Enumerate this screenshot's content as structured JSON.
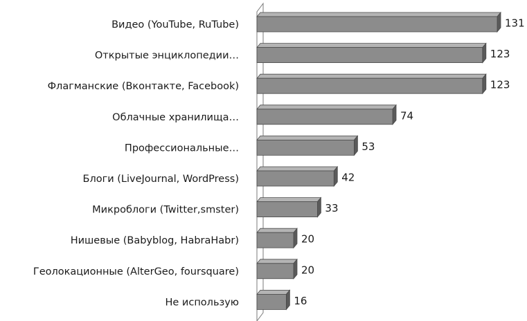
{
  "chart_data": {
    "type": "bar",
    "orientation": "horizontal",
    "style": "3d",
    "categories": [
      "Видео (YouTube, RuTube)",
      "Открытые энциклопедии…",
      "Флагманские (Вконтакте, Facebook)",
      "Облачные хранилища…",
      "Профессиональные…",
      "Блоги (LiveJournal, WordPress)",
      "Микроблоги (Twitter,smster)",
      "Нишевые (Babyblog, HabraHabr)",
      "Геолокационные (AlterGeo, foursquare)",
      "Не использую"
    ],
    "values": [
      131,
      123,
      123,
      74,
      53,
      42,
      33,
      20,
      20,
      16
    ],
    "data_labels": [
      "131",
      "123",
      "123",
      "74",
      "53",
      "42",
      "33",
      "20",
      "20",
      "16"
    ],
    "xlim": [
      0,
      131
    ],
    "grid": false,
    "legend": "none",
    "colors": {
      "bar_front": "#8c8c8c",
      "bar_top": "#b4b4b4",
      "bar_side": "#5a5a5a",
      "bar_outline": "#4a4a4a",
      "wall_outline": "#7a7a7a",
      "text": "#1a1a1a"
    }
  }
}
